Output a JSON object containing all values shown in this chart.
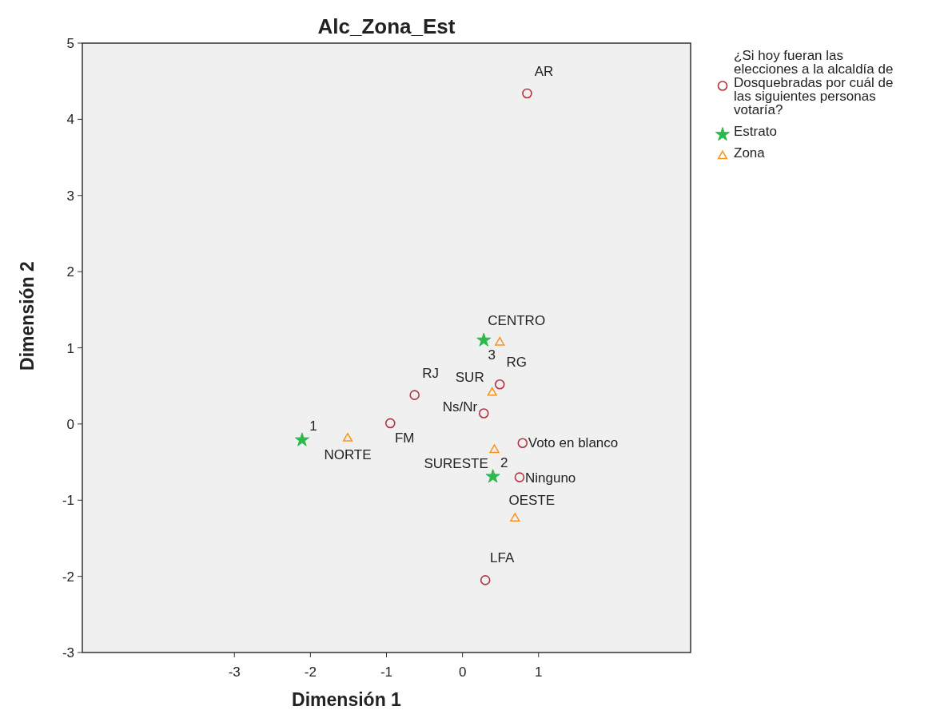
{
  "chart_data": {
    "type": "scatter",
    "title": "Alc_Zona_Est",
    "xlabel": "Dimensión 1",
    "ylabel": "Dimensión 2",
    "xlim": [
      -5,
      3
    ],
    "ylim": [
      -3,
      5
    ],
    "xticks": [
      -3,
      -2,
      -1,
      0,
      1
    ],
    "yticks": [
      -3,
      -2,
      -1,
      0,
      1,
      2,
      3,
      4,
      5
    ],
    "grid": false,
    "legend": "right",
    "series": [
      {
        "name": "¿Si hoy fueran las elecciones a la alcaldía de Dosquebradas por cuál de las siguientes personas votaría?",
        "color": "#b2333f",
        "marker": "circle",
        "x": [
          0.85,
          0.49,
          -0.63,
          0.28,
          -0.95,
          0.79,
          0.75,
          0.3
        ],
        "values": [
          4.34,
          0.52,
          0.38,
          0.14,
          0.01,
          -0.25,
          -0.7,
          -2.05
        ]
      },
      {
        "name": "Estrato",
        "color": "#2db84c",
        "marker": "star",
        "x": [
          0.28,
          -2.11,
          0.4
        ],
        "values": [
          1.1,
          -0.21,
          -0.69
        ]
      },
      {
        "name": "Zona",
        "color": "#f7931e",
        "marker": "triangle",
        "x": [
          0.49,
          0.39,
          -1.51,
          0.42,
          0.69
        ],
        "values": [
          1.07,
          0.41,
          -0.19,
          -0.34,
          -1.24
        ]
      }
    ],
    "annotations": [
      {
        "text": "AR",
        "x": 0.85,
        "y": 4.34
      },
      {
        "text": "RG",
        "x": 0.49,
        "y": 0.52
      },
      {
        "text": "RJ",
        "x": -0.63,
        "y": 0.38
      },
      {
        "text": "Ns/Nr",
        "x": 0.28,
        "y": 0.14
      },
      {
        "text": "FM",
        "x": -0.95,
        "y": 0.01
      },
      {
        "text": "Voto en blanco",
        "x": 0.79,
        "y": -0.25
      },
      {
        "text": "Ninguno",
        "x": 0.75,
        "y": -0.7
      },
      {
        "text": "LFA",
        "x": 0.3,
        "y": -2.05
      },
      {
        "text": "3",
        "x": 0.28,
        "y": 1.1
      },
      {
        "text": "1",
        "x": -2.11,
        "y": -0.21
      },
      {
        "text": "2",
        "x": 0.4,
        "y": -0.69
      },
      {
        "text": "CENTRO",
        "x": 0.49,
        "y": 1.07
      },
      {
        "text": "SUR",
        "x": 0.39,
        "y": 0.41
      },
      {
        "text": "NORTE",
        "x": -1.51,
        "y": -0.19
      },
      {
        "text": "SURESTE",
        "x": 0.42,
        "y": -0.34
      },
      {
        "text": "OESTE",
        "x": 0.69,
        "y": -1.24
      }
    ]
  }
}
